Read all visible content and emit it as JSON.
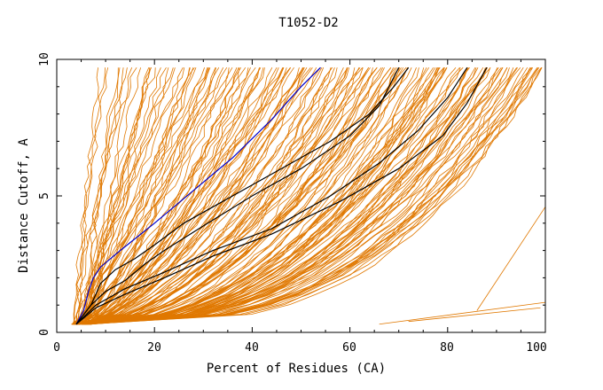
{
  "chart_data": {
    "type": "line",
    "title": "T1052-D2",
    "xlabel": "Percent of Residues (CA)",
    "ylabel": "Distance Cutoff, A",
    "xlim": [
      0,
      100
    ],
    "ylim": [
      0,
      10
    ],
    "x_ticks": [
      "0",
      "20",
      "40",
      "60",
      "80",
      "100"
    ],
    "y_ticks": [
      "0",
      "5",
      "10"
    ],
    "grid": false,
    "background_series_color": "#e07800",
    "background_series_count": 170,
    "highlighted_series": [
      {
        "name": "blue-model",
        "color": "#0000cc",
        "x": [
          4,
          5.5,
          6.5,
          7.5,
          9,
          13,
          20,
          28,
          36,
          44,
          50,
          54
        ],
        "y": [
          0.3,
          0.8,
          1.5,
          2.0,
          2.4,
          3.0,
          4.0,
          5.2,
          6.4,
          7.8,
          9.0,
          9.7
        ]
      },
      {
        "name": "black-model-1",
        "color": "#000000",
        "x": [
          4,
          7,
          9,
          12,
          16,
          20,
          26,
          34,
          44,
          56,
          64,
          69,
          72
        ],
        "y": [
          0.3,
          1.0,
          1.8,
          2.3,
          2.7,
          3.2,
          4.0,
          4.8,
          5.8,
          7.0,
          8.0,
          9.0,
          9.7
        ]
      },
      {
        "name": "black-model-2",
        "color": "#000000",
        "x": [
          4,
          7,
          10,
          14,
          18,
          22,
          30,
          40,
          50,
          60,
          66,
          70
        ],
        "y": [
          0.3,
          1.0,
          1.5,
          1.9,
          2.5,
          3.0,
          3.9,
          5.0,
          6.0,
          7.2,
          8.3,
          9.7
        ]
      },
      {
        "name": "black-model-3",
        "color": "#000000",
        "x": [
          4,
          8,
          14,
          22,
          32,
          44,
          56,
          66,
          74,
          80,
          84
        ],
        "y": [
          0.3,
          1.0,
          1.6,
          2.2,
          3.0,
          3.8,
          5.0,
          6.2,
          7.4,
          8.6,
          9.7
        ]
      },
      {
        "name": "black-model-4",
        "color": "#000000",
        "x": [
          4,
          8,
          14,
          22,
          32,
          44,
          58,
          70,
          79,
          84,
          88
        ],
        "y": [
          0.3,
          0.9,
          1.4,
          2.0,
          2.8,
          3.6,
          4.8,
          6.0,
          7.2,
          8.4,
          9.7
        ]
      }
    ]
  }
}
